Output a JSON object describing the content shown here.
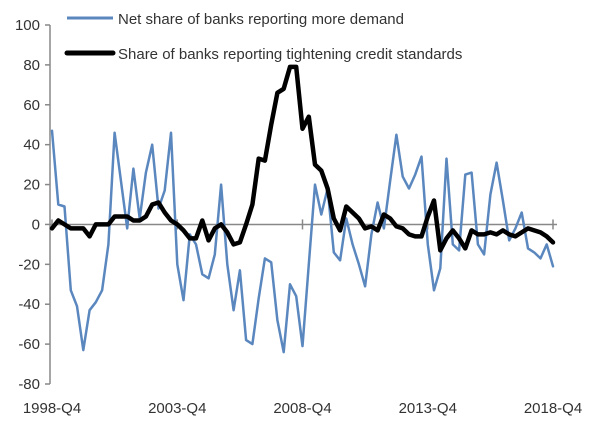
{
  "chart_data": {
    "type": "line",
    "title": "",
    "xlabel": "",
    "ylabel": "",
    "ylim": [
      -80,
      100
    ],
    "yticks": [
      -80,
      -60,
      -40,
      -20,
      0,
      20,
      40,
      60,
      80,
      100
    ],
    "x_start": "1998-Q4",
    "x_end": "2018-Q4",
    "xtick_labels": [
      "1998-Q4",
      "2003-Q4",
      "2008-Q4",
      "2013-Q4",
      "2018-Q4"
    ],
    "legend_position": "top",
    "series": [
      {
        "name": "Net share of banks reporting more demand",
        "color": "#5b87bf",
        "values": [
          47,
          10,
          9,
          -33,
          -41,
          -63,
          -43,
          -39,
          -33,
          -10,
          46,
          22,
          -2,
          28,
          3,
          26,
          40,
          8,
          17,
          46,
          -20,
          -38,
          -5,
          -10,
          -25,
          -27,
          -15,
          20,
          -20,
          -43,
          -23,
          -58,
          -60,
          -37,
          -17,
          -19,
          -48,
          -64,
          -30,
          -36,
          -61,
          -20,
          20,
          5,
          18,
          -14,
          -18,
          3,
          -10,
          -20,
          -31,
          -5,
          11,
          -2,
          22,
          45,
          24,
          18,
          25,
          34,
          -10,
          -33,
          -22,
          33,
          -10,
          -13,
          25,
          26,
          -10,
          -15,
          15,
          31,
          12,
          -8,
          -2,
          6,
          -12,
          -14,
          -17,
          -10,
          -21
        ]
      },
      {
        "name": "Share of banks reporting tightening credit standards",
        "color": "#000000",
        "values": [
          -2,
          2,
          0,
          -2,
          -2,
          -2,
          -6,
          0,
          0,
          0,
          4,
          4,
          4,
          2,
          2,
          4,
          10,
          11,
          6,
          2,
          0,
          -3,
          -7,
          -7,
          2,
          -8,
          -2,
          0,
          -4,
          -10,
          -9,
          0,
          10,
          33,
          32,
          50,
          66,
          68,
          79,
          79,
          48,
          54,
          30,
          27,
          18,
          3,
          -3,
          9,
          6,
          3,
          -2,
          -1,
          -3,
          5,
          3,
          -1,
          -2,
          -5,
          -6,
          -6,
          4,
          12,
          -13,
          -7,
          -3,
          -7,
          -12,
          -3,
          -5,
          -5,
          -4,
          -5,
          -3,
          -5,
          -6,
          -4,
          -2,
          -3,
          -4,
          -6,
          -9
        ]
      }
    ]
  }
}
